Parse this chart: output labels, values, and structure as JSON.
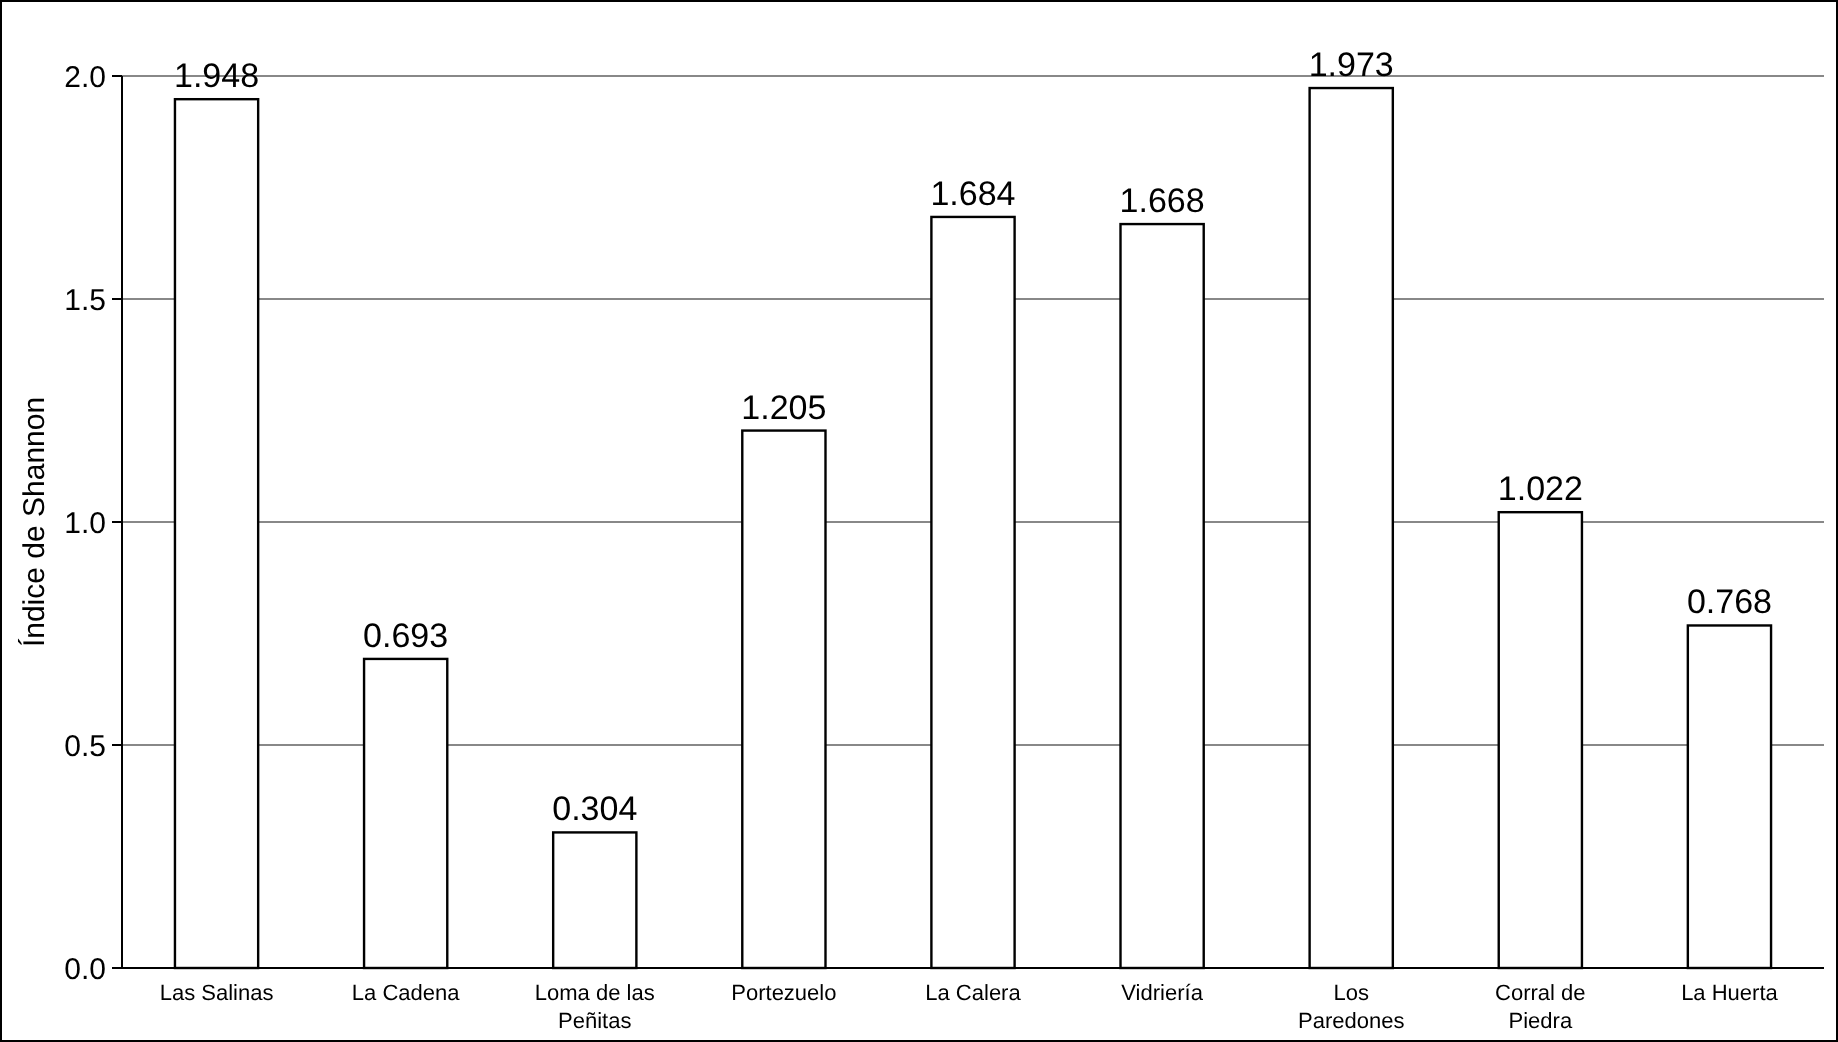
{
  "chart_data": {
    "type": "bar",
    "ylabel": "Índice de Shannon",
    "categories": [
      "Las Salinas",
      "La Cadena",
      "Loma de las Peñitas",
      "Portezuelo",
      "La Calera",
      "Vidriería",
      "Los Paredones",
      "Corral de Piedra",
      "La Huerta"
    ],
    "values": [
      1.948,
      0.693,
      0.304,
      1.205,
      1.684,
      1.668,
      1.973,
      1.022,
      0.768
    ],
    "color": "#ffffff",
    "ylim": [
      0,
      2.0
    ],
    "yticks": [
      {
        "value": 0,
        "label": "0.0"
      },
      {
        "value": 0.5,
        "label": "0.5"
      },
      {
        "value": 1,
        "label": "1.0"
      },
      {
        "value": 1.5,
        "label": "1.5"
      },
      {
        "value": 2,
        "label": "2.0"
      }
    ],
    "grid": "y",
    "data_labels": true
  }
}
